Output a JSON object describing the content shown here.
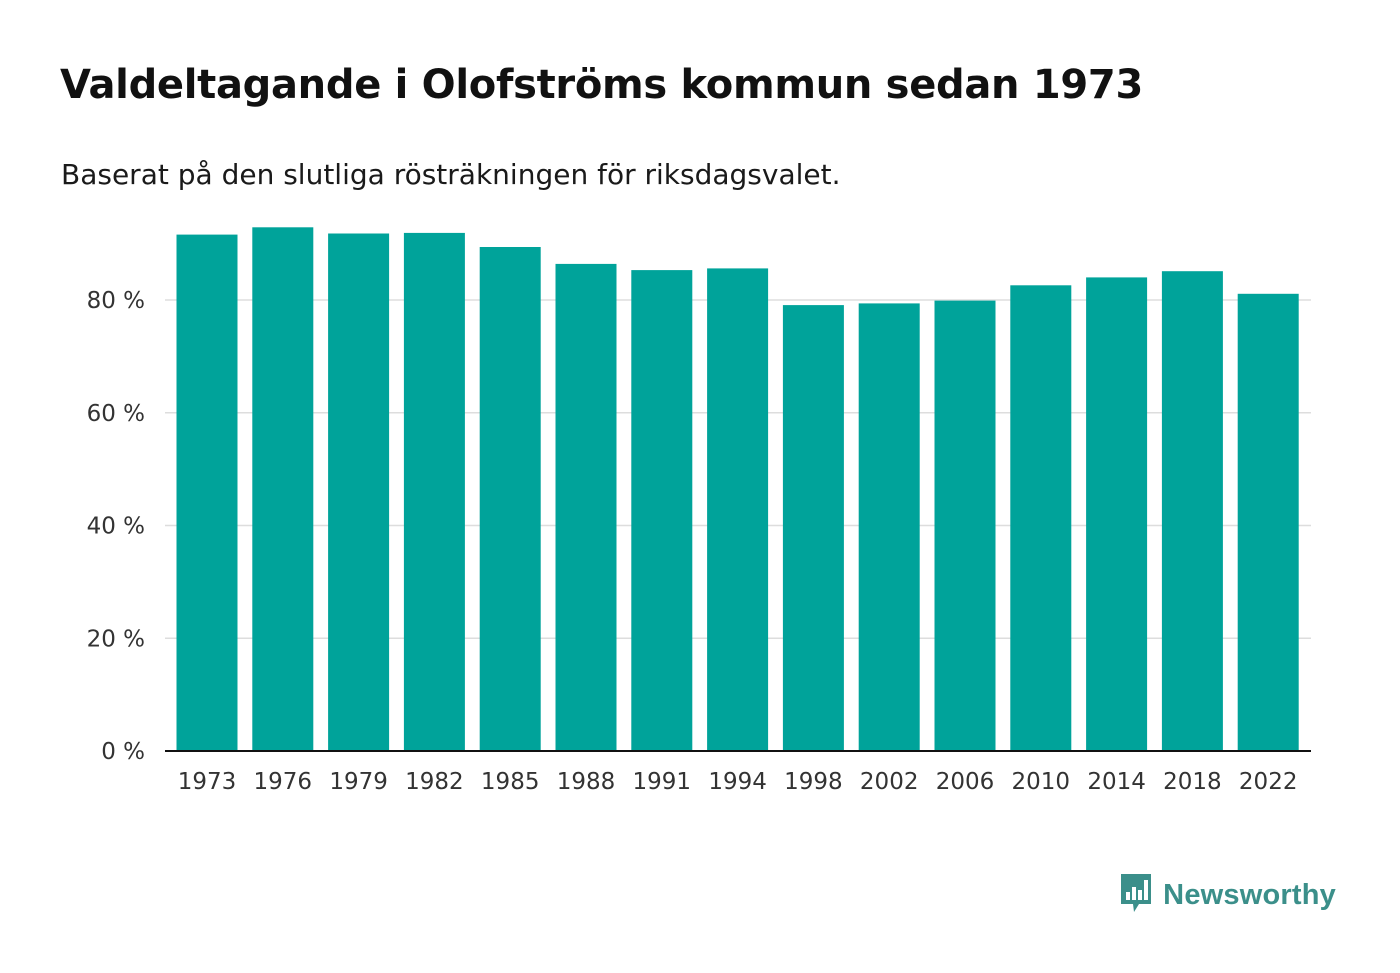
{
  "header": {
    "title": "Valdeltagande i Olofströms kommun sedan 1973",
    "subtitle": "Baserat på den slutliga rösträkningen för riksdagsvalet."
  },
  "brand": {
    "name": "Newsworthy",
    "icon": "newsworthy-logo-icon",
    "color": "#3b8f8a"
  },
  "colors": {
    "bar": "#00a39a",
    "grid": "#dddddd",
    "axis": "#111111"
  },
  "chart_data": {
    "type": "bar",
    "title": "Valdeltagande i Olofströms kommun sedan 1973",
    "subtitle": "Baserat på den slutliga rösträkningen för riksdagsvalet.",
    "xlabel": "",
    "ylabel": "",
    "categories": [
      "1973",
      "1976",
      "1979",
      "1982",
      "1985",
      "1988",
      "1991",
      "1994",
      "1998",
      "2002",
      "2006",
      "2010",
      "2014",
      "2018",
      "2022"
    ],
    "values": [
      91.6,
      92.9,
      91.8,
      91.9,
      89.4,
      86.4,
      85.3,
      85.6,
      79.1,
      79.4,
      79.9,
      82.6,
      84.0,
      85.1,
      81.1
    ],
    "unit": "%",
    "ylim": [
      0,
      95
    ],
    "yticks": [
      0,
      20,
      40,
      60,
      80
    ],
    "ytick_labels": [
      "0 %",
      "20 %",
      "40 %",
      "60 %",
      "80 %"
    ],
    "grid": true,
    "legend": "none"
  }
}
